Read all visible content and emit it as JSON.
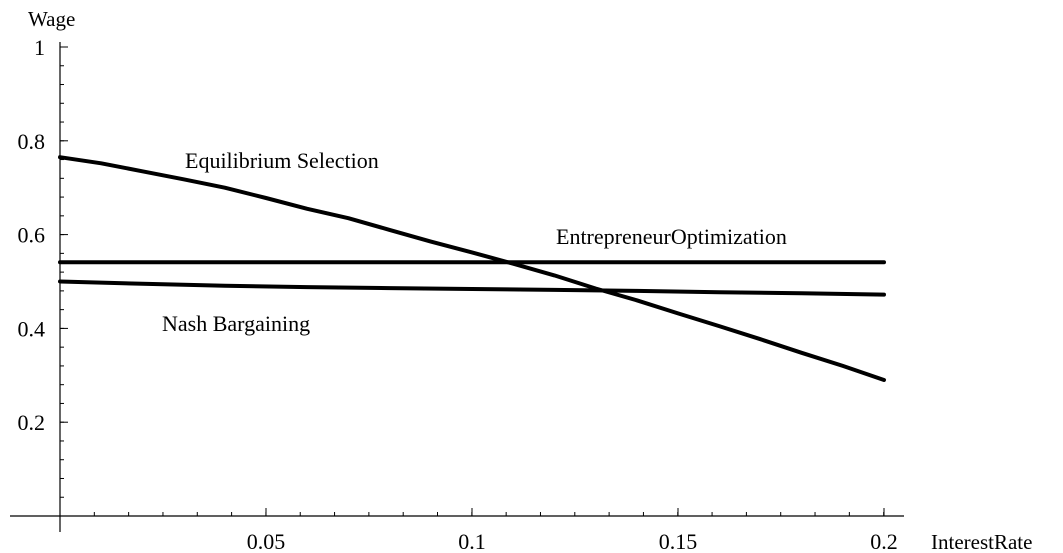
{
  "chart_data": {
    "type": "line",
    "xlabel": "InterestRate",
    "ylabel": "Wage",
    "xlim": [
      0,
      0.2
    ],
    "ylim": [
      0,
      1
    ],
    "x_ticks": [
      {
        "value": 0.05,
        "label": "0.05"
      },
      {
        "value": 0.1,
        "label": "0.1"
      },
      {
        "value": 0.15,
        "label": "0.15"
      },
      {
        "value": 0.2,
        "label": "0.2"
      }
    ],
    "y_ticks": [
      {
        "value": 0.2,
        "label": "0.2"
      },
      {
        "value": 0.4,
        "label": "0.4"
      },
      {
        "value": 0.6,
        "label": "0.6"
      },
      {
        "value": 0.8,
        "label": "0.8"
      },
      {
        "value": 1,
        "label": "1"
      }
    ],
    "x_minor_step": 0.00833,
    "y_minor_step": 0.04,
    "series": [
      {
        "name": "Equilibrium Selection",
        "x": [
          0.0,
          0.01,
          0.02,
          0.03,
          0.04,
          0.05,
          0.06,
          0.07,
          0.08,
          0.09,
          0.1,
          0.11,
          0.12,
          0.13,
          0.14,
          0.15,
          0.16,
          0.17,
          0.18,
          0.19,
          0.2
        ],
        "values": [
          0.765,
          0.752,
          0.735,
          0.718,
          0.7,
          0.678,
          0.655,
          0.635,
          0.61,
          0.585,
          0.562,
          0.538,
          0.513,
          0.485,
          0.46,
          0.432,
          0.405,
          0.377,
          0.348,
          0.32,
          0.29
        ]
      },
      {
        "name": "Entrepreneur Optimization",
        "x": [
          0.0,
          0.2
        ],
        "values": [
          0.541,
          0.541
        ]
      },
      {
        "name": "Nash Bargaining",
        "x": [
          0.0,
          0.02,
          0.04,
          0.06,
          0.08,
          0.1,
          0.12,
          0.14,
          0.16,
          0.18,
          0.2
        ],
        "values": [
          0.5,
          0.495,
          0.491,
          0.488,
          0.486,
          0.484,
          0.482,
          0.48,
          0.477,
          0.475,
          0.472
        ]
      }
    ],
    "annotations": [
      {
        "text": "Equilibrium Selection",
        "series": 0
      },
      {
        "text": "EntrepreneurOptimization",
        "series": 1
      },
      {
        "text": "Nash Bargaining",
        "series": 2
      }
    ]
  }
}
